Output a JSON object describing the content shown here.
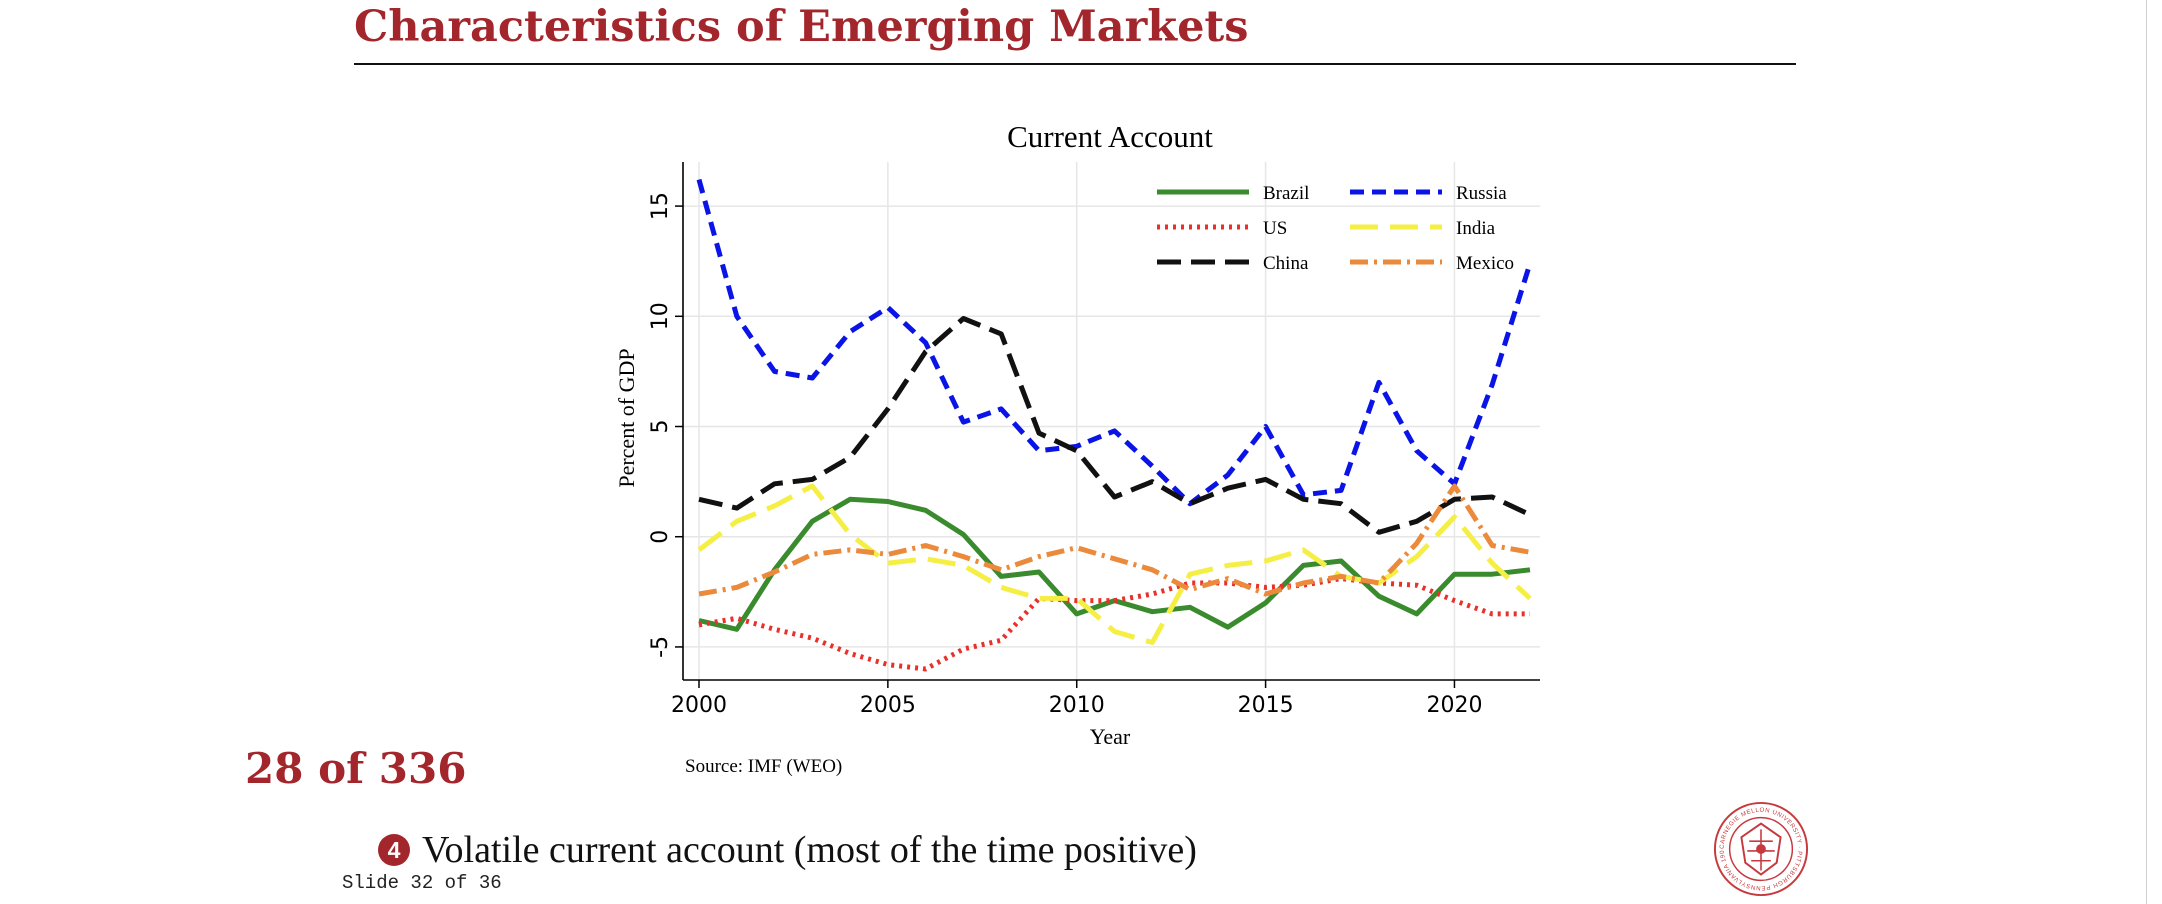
{
  "slide": {
    "title": "Characteristics of Emerging Markets",
    "page_counter": "28 of 336",
    "bullet_number": "4",
    "bullet_text": "Volatile current account (most of the time positive)",
    "footer": "Slide 32 of 36",
    "brand_color": "#a3262c",
    "seal_text": "CARNEGIE MELLON UNIVERSITY · PITTSBURGH PENNSYLVANIA 1900"
  },
  "chart_data": {
    "type": "line",
    "title": "Current Account",
    "xlabel": "Year",
    "ylabel": "Percent of GDP",
    "source": "Source: IMF (WEO)",
    "xlim": [
      2000,
      2022
    ],
    "ylim": [
      -6.5,
      17
    ],
    "xticks": [
      2000,
      2005,
      2010,
      2015,
      2020
    ],
    "yticks": [
      -5,
      0,
      5,
      10,
      15
    ],
    "grid": true,
    "legend_position": "top-right",
    "x": [
      2000,
      2001,
      2002,
      2003,
      2004,
      2005,
      2006,
      2007,
      2008,
      2009,
      2010,
      2011,
      2012,
      2013,
      2014,
      2015,
      2016,
      2017,
      2018,
      2019,
      2020,
      2021,
      2022
    ],
    "series": [
      {
        "name": "Brazil",
        "color": "#3a8a2e",
        "dash": "solid",
        "width": 5,
        "values": [
          -3.8,
          -4.2,
          -1.5,
          0.7,
          1.7,
          1.6,
          1.2,
          0.1,
          -1.8,
          -1.6,
          -3.5,
          -2.9,
          -3.4,
          -3.2,
          -4.1,
          -3.0,
          -1.3,
          -1.1,
          -2.7,
          -3.5,
          -1.7,
          -1.7,
          -1.5
        ]
      },
      {
        "name": "Russia",
        "color": "#0a14e6",
        "dash": "14,8",
        "width": 5,
        "values": [
          16.2,
          10.0,
          7.5,
          7.2,
          9.3,
          10.4,
          8.8,
          5.2,
          5.8,
          3.9,
          4.1,
          4.8,
          3.2,
          1.5,
          2.8,
          5.0,
          1.9,
          2.1,
          7.0,
          3.9,
          2.4,
          6.9,
          12.4
        ]
      },
      {
        "name": "US",
        "color": "#e8312a",
        "dash": "3,5",
        "width": 5,
        "values": [
          -4.0,
          -3.7,
          -4.2,
          -4.6,
          -5.3,
          -5.8,
          -6.0,
          -5.1,
          -4.7,
          -2.8,
          -2.9,
          -2.9,
          -2.6,
          -2.1,
          -2.1,
          -2.3,
          -2.2,
          -1.9,
          -2.1,
          -2.2,
          -2.9,
          -3.5,
          -3.5
        ]
      },
      {
        "name": "India",
        "color": "#f5ef45",
        "dash": "28,12",
        "width": 5,
        "values": [
          -0.6,
          0.7,
          1.4,
          2.3,
          0.1,
          -1.2,
          -1.0,
          -1.3,
          -2.3,
          -2.8,
          -2.8,
          -4.3,
          -4.8,
          -1.7,
          -1.3,
          -1.1,
          -0.6,
          -1.8,
          -2.1,
          -0.9,
          0.9,
          -1.2,
          -2.8
        ]
      },
      {
        "name": "China",
        "color": "#111111",
        "dash": "24,10",
        "width": 5,
        "values": [
          1.7,
          1.3,
          2.4,
          2.6,
          3.6,
          5.8,
          8.4,
          9.9,
          9.2,
          4.7,
          3.9,
          1.8,
          2.5,
          1.5,
          2.2,
          2.6,
          1.7,
          1.5,
          0.2,
          0.7,
          1.7,
          1.8,
          1.0
        ]
      },
      {
        "name": "Mexico",
        "color": "#ec8a3c",
        "dash": "18,6,3,6",
        "width": 5,
        "values": [
          -2.6,
          -2.3,
          -1.6,
          -0.8,
          -0.6,
          -0.8,
          -0.4,
          -0.9,
          -1.5,
          -0.9,
          -0.5,
          -1.0,
          -1.5,
          -2.4,
          -1.9,
          -2.6,
          -2.1,
          -1.8,
          -2.1,
          -0.3,
          2.3,
          -0.4,
          -0.7
        ]
      }
    ]
  }
}
